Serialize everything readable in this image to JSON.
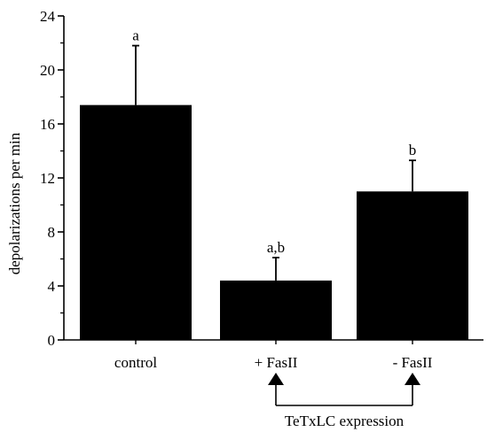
{
  "chart_data": {
    "type": "bar",
    "categories": [
      "control",
      "+ FasII",
      "- FasII"
    ],
    "values": [
      17.4,
      4.4,
      11.0
    ],
    "errors": [
      4.4,
      1.7,
      2.3
    ],
    "significance": [
      "a",
      "a,b",
      "b"
    ],
    "ylabel": "depolarizations per min",
    "ylim": [
      0,
      24
    ],
    "yticks": [
      0,
      4,
      8,
      12,
      16,
      20,
      24
    ],
    "grid": false,
    "bar_color": "#000000",
    "bracket": {
      "label": "TeTxLC expression",
      "connects": [
        "+ FasII",
        "- FasII"
      ]
    }
  }
}
